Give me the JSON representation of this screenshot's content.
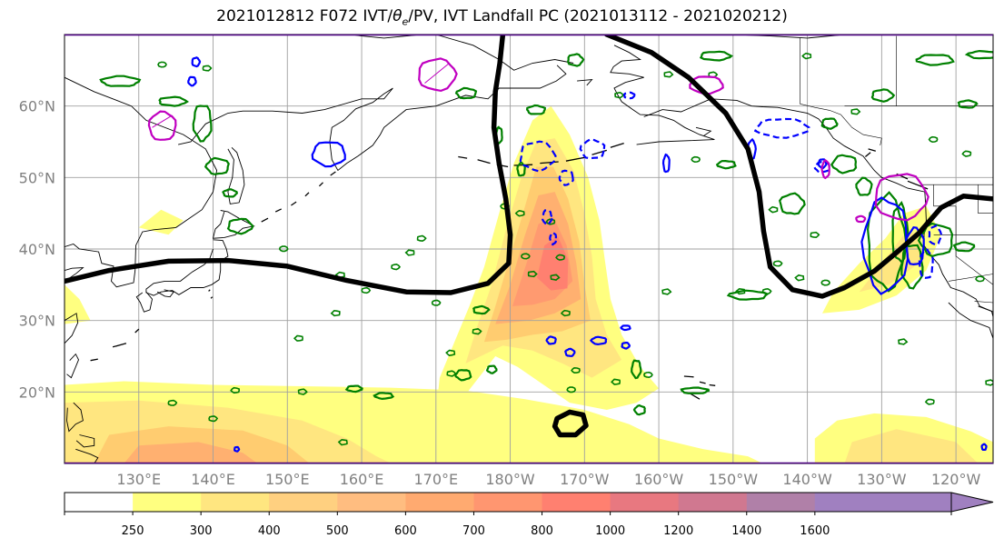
{
  "title": {
    "prefix": "2021012812 F072 IVT/",
    "symbol": "θ",
    "subscript": "e",
    "suffix": "/PV, IVT Landfall PC (2021013112 - 2021020212)"
  },
  "map": {
    "projection": "PlateCarree",
    "lon_range": [
      120,
      245
    ],
    "lat_range": [
      10,
      70
    ],
    "lat_ticks": [
      {
        "value": 60,
        "label": "60°N"
      },
      {
        "value": 50,
        "label": "50°N"
      },
      {
        "value": 40,
        "label": "40°N"
      },
      {
        "value": 30,
        "label": "30°N"
      },
      {
        "value": 20,
        "label": "20°N"
      }
    ],
    "lon_ticks": [
      {
        "value": 130,
        "label": "130°E"
      },
      {
        "value": 140,
        "label": "140°E"
      },
      {
        "value": 150,
        "label": "150°E"
      },
      {
        "value": 160,
        "label": "160°E"
      },
      {
        "value": 170,
        "label": "170°E"
      },
      {
        "value": 180,
        "label": "180°W"
      },
      {
        "value": 190,
        "label": "170°W"
      },
      {
        "value": 200,
        "label": "160°W"
      },
      {
        "value": 210,
        "label": "150°W"
      },
      {
        "value": 220,
        "label": "140°W"
      },
      {
        "value": 230,
        "label": "130°W"
      },
      {
        "value": 240,
        "label": "120°W"
      }
    ],
    "gridlines": true,
    "grid_color": "#a0a0a0",
    "coast_color": "#000000",
    "frame_color": "#4b0082",
    "black_contour": {
      "color": "#000000",
      "main": [
        [
          120,
          35.5
        ],
        [
          126,
          37
        ],
        [
          134,
          38.3
        ],
        [
          142,
          38.4
        ],
        [
          150,
          37.6
        ],
        [
          158,
          35.6
        ],
        [
          166,
          34
        ],
        [
          172,
          33.9
        ],
        [
          177,
          35.2
        ],
        [
          179.8,
          38
        ],
        [
          180,
          42
        ],
        [
          179.4,
          47
        ],
        [
          178.5,
          52
        ],
        [
          177.8,
          57
        ],
        [
          178,
          62
        ],
        [
          178.6,
          66
        ],
        [
          179,
          70
        ]
      ],
      "ridge": [
        [
          193,
          70
        ],
        [
          199,
          67.5
        ],
        [
          204,
          64
        ],
        [
          209,
          59
        ],
        [
          212,
          54
        ],
        [
          213.5,
          48
        ],
        [
          214.1,
          42.5
        ],
        [
          215,
          37.5
        ],
        [
          218,
          34.3
        ],
        [
          222,
          33.4
        ],
        [
          225,
          34.6
        ],
        [
          229,
          36.9
        ],
        [
          232,
          39.5
        ],
        [
          235,
          42.2
        ],
        [
          238,
          45.8
        ],
        [
          241,
          47.4
        ],
        [
          245,
          47
        ]
      ],
      "loop": [
        [
          186.3,
          16.3
        ],
        [
          188,
          17.2
        ],
        [
          189.8,
          16.8
        ],
        [
          190.2,
          15.3
        ],
        [
          188.8,
          14
        ],
        [
          186.7,
          14
        ],
        [
          186,
          15.2
        ],
        [
          186.3,
          16.3
        ]
      ]
    },
    "ivt_levels": [
      {
        "min": 250,
        "color": "#ffff80"
      },
      {
        "min": 300,
        "color": "#ffe680"
      },
      {
        "min": 400,
        "color": "#ffcc70"
      },
      {
        "min": 500,
        "color": "#ffb070"
      },
      {
        "min": 600,
        "color": "#ff9a70"
      },
      {
        "min": 700,
        "color": "#ff8070"
      }
    ],
    "pv_color": "#008000",
    "theta_color": "#0000ff",
    "landfall_color": "#c000c0"
  },
  "colorbar": {
    "colors": [
      "#ffffff",
      "#ffff80",
      "#ffe680",
      "#ffd080",
      "#ffbd80",
      "#ffaa70",
      "#ff9670",
      "#ff8070",
      "#e87880",
      "#d07890",
      "#b080a8",
      "#a080c0",
      "#a080c0"
    ],
    "ticks": [
      "250",
      "300",
      "400",
      "500",
      "600",
      "700",
      "800",
      "1000",
      "1200",
      "1400",
      "1600"
    ],
    "extend": "max"
  }
}
